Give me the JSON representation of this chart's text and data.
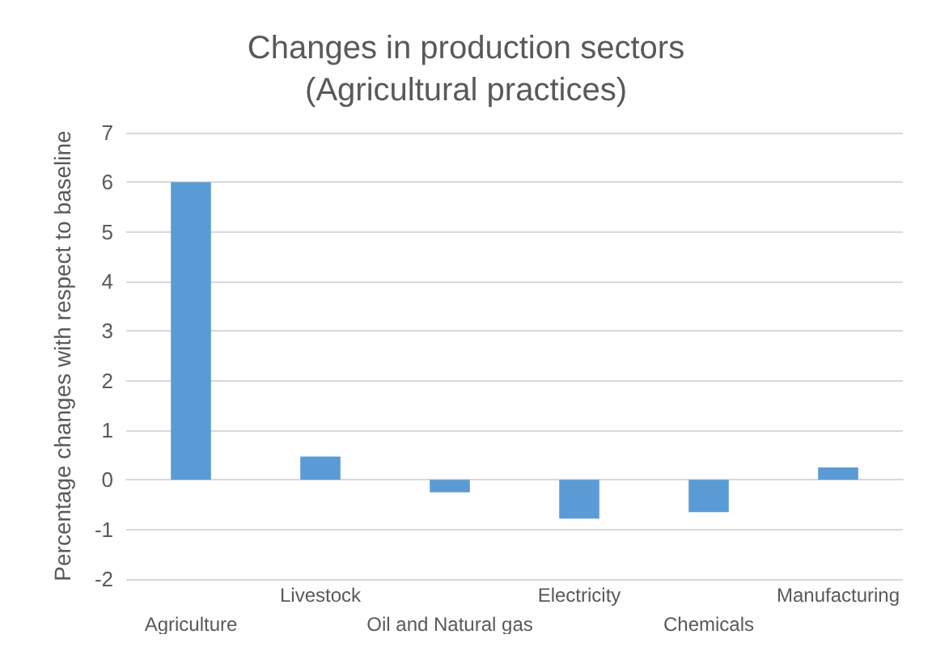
{
  "chart_data": {
    "type": "bar",
    "title": "Changes in production sectors\n(Agricultural practices)",
    "ylabel": "Percentage changes with respect to baseline",
    "categories": [
      "Agriculture",
      "Livestock",
      "Oil and Natural gas",
      "Electricity",
      "Chemicals",
      "Manufacturing"
    ],
    "values": [
      6,
      0.47,
      -0.25,
      -0.78,
      -0.65,
      0.25
    ],
    "color": "#5b9bd5",
    "ylim": [
      -2,
      7
    ],
    "yticks": [
      -2,
      -1,
      0,
      1,
      2,
      3,
      4,
      5,
      6,
      7
    ],
    "grid": "y"
  }
}
